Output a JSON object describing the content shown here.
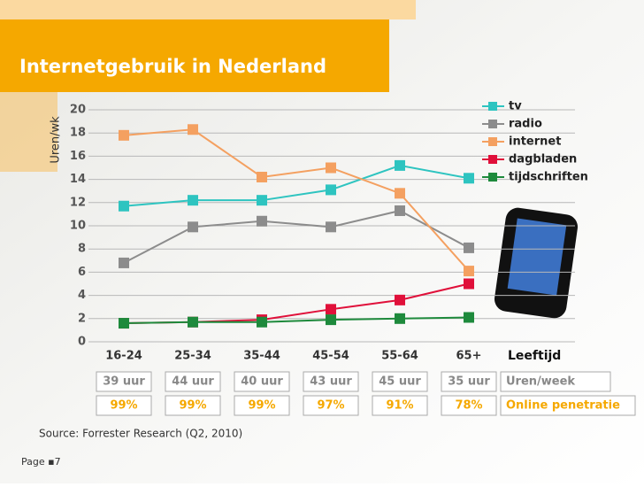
{
  "chart_data": {
    "type": "line",
    "title": "Internetgebruik in Nederland",
    "y_label": "Uren/wk",
    "x_label": "Leeftijd",
    "categories": [
      "16-24",
      "25-34",
      "35-44",
      "45-54",
      "55-64",
      "65+"
    ],
    "series": [
      {
        "name": "tv",
        "color": "#2ec4c0",
        "values": [
          11.7,
          12.2,
          12.2,
          13.1,
          15.2,
          14.1
        ]
      },
      {
        "name": "radio",
        "color": "#8c8c8c",
        "values": [
          6.8,
          9.9,
          10.4,
          9.9,
          11.3,
          8.1
        ]
      },
      {
        "name": "internet",
        "color": "#f4a060",
        "values": [
          17.8,
          18.3,
          14.2,
          15.0,
          12.8,
          6.1
        ]
      },
      {
        "name": "dagbladen",
        "color": "#e0103a",
        "values": [
          1.6,
          1.7,
          1.9,
          2.8,
          3.6,
          5.0
        ]
      },
      {
        "name": "tijdschriften",
        "color": "#1e8a3c",
        "values": [
          1.6,
          1.7,
          1.7,
          1.9,
          2.0,
          2.1
        ]
      }
    ],
    "ylim": [
      0,
      20
    ],
    "yticks": [
      0,
      2,
      4,
      6,
      8,
      10,
      12,
      14,
      16,
      18,
      20
    ],
    "grid": true,
    "legend": "top-right",
    "hours": {
      "label": "Uren/week",
      "values": [
        "39 uur",
        "44 uur",
        "40 uur",
        "43 uur",
        "45 uur",
        "35 uur"
      ]
    },
    "penetration": {
      "label": "Online penetratie",
      "values": [
        "99%",
        "99%",
        "99%",
        "97%",
        "91%",
        "78%"
      ]
    },
    "source": "Source: Forrester Research (Q2, 2010)",
    "page": "Page ▪7"
  }
}
